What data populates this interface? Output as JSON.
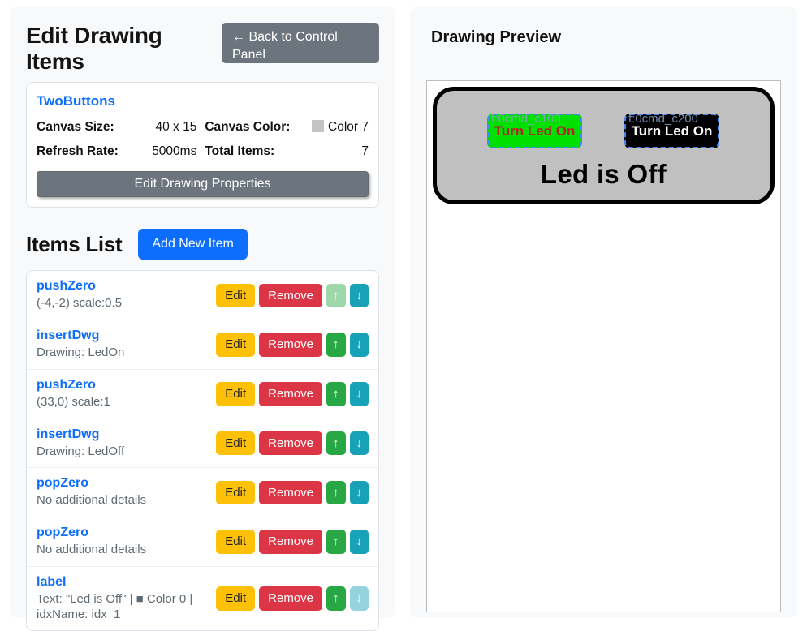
{
  "left_panel": {
    "title": "Edit Drawing Items",
    "back_button_label": "← Back to Control Panel",
    "drawing_info": {
      "name": "TwoButtons",
      "fields": [
        {
          "label": "Canvas Size:",
          "value": "40 x 15"
        },
        {
          "label": "Canvas Color:",
          "value": "Color 7",
          "swatch_color": "#c4c4c4"
        },
        {
          "label": "Refresh Rate:",
          "value": "5000ms"
        },
        {
          "label": "Total Items:",
          "value": "7"
        }
      ],
      "edit_properties_label": "Edit Drawing Properties"
    },
    "items_header": "Items List",
    "add_item_label": "Add New Item",
    "item_buttons": {
      "edit": "Edit",
      "remove": "Remove",
      "up": "↑",
      "down": "↓"
    },
    "items": [
      {
        "name": "pushZero",
        "detail": "(-4,-2) scale:0.5",
        "up_disabled": true,
        "down_disabled": false
      },
      {
        "name": "insertDwg",
        "detail": "Drawing: LedOn",
        "up_disabled": false,
        "down_disabled": false
      },
      {
        "name": "pushZero",
        "detail": "(33,0) scale:1",
        "up_disabled": false,
        "down_disabled": false
      },
      {
        "name": "insertDwg",
        "detail": "Drawing: LedOff",
        "up_disabled": false,
        "down_disabled": false
      },
      {
        "name": "popZero",
        "detail": "No additional details",
        "up_disabled": false,
        "down_disabled": false
      },
      {
        "name": "popZero",
        "detail": "No additional details",
        "up_disabled": false,
        "down_disabled": false
      },
      {
        "name": "label",
        "detail": "Text: \"Led is Off\" | ■ Color 0 | idxName: idx_1",
        "up_disabled": false,
        "down_disabled": true
      }
    ]
  },
  "right_panel": {
    "title": "Drawing Preview",
    "canvas": {
      "background_color": "#c0c0c0",
      "border_color": "#000000",
      "selection_border_color": "#4285f4",
      "buttons": [
        {
          "label": "Turn Led On",
          "overlay": "f:0cmd_c100",
          "bg": "#00e000",
          "text_color": "#b22222"
        },
        {
          "label": "Turn Led On",
          "overlay": "f:0cmd_c200",
          "bg": "#000000",
          "text_color": "#ffffff"
        }
      ],
      "status_text": "Led is Off"
    }
  },
  "colors": {
    "panel_bg": "#f8f9fa",
    "primary_blue": "#0d6efd",
    "secondary_gray": "#6c757d",
    "edit_yellow": "#ffc107",
    "remove_red": "#dc3545",
    "up_green": "#28a745",
    "down_teal": "#17a2b8"
  }
}
